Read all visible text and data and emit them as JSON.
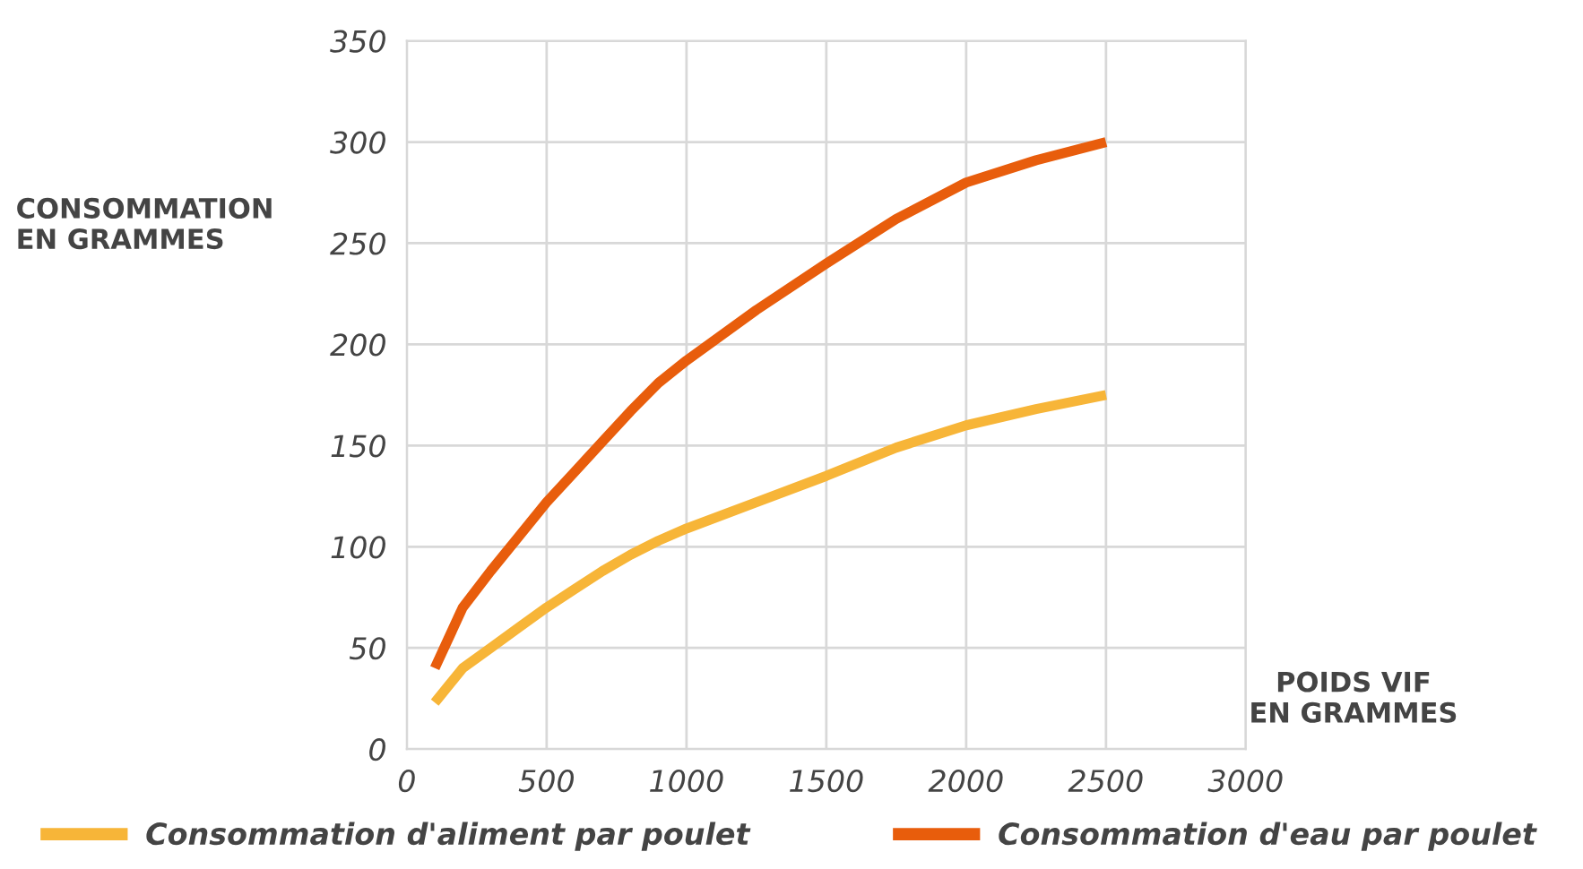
{
  "chart_data": {
    "type": "line",
    "xlabel": "POIDS VIF\nEN GRAMMES",
    "ylabel": "CONSOMMATION\nEN GRAMMES",
    "x": [
      100,
      200,
      300,
      400,
      500,
      600,
      700,
      800,
      900,
      1000,
      1250,
      1500,
      1750,
      2000,
      2250,
      2500
    ],
    "series": [
      {
        "name": "Consommation d'aliment par poulet",
        "color": "#f7b538",
        "values": [
          23,
          40,
          50,
          60,
          70,
          79,
          88,
          96,
          103,
          109,
          122,
          135,
          149,
          160,
          168,
          175
        ]
      },
      {
        "name": "Consommation d'eau par poulet",
        "color": "#e85d0c",
        "values": [
          40,
          70,
          88,
          105,
          122,
          137,
          152,
          167,
          181,
          192,
          217,
          240,
          262,
          280,
          291,
          300
        ]
      }
    ],
    "xlim": [
      0,
      3000
    ],
    "xticks": [
      0,
      500,
      1000,
      1500,
      2000,
      2500,
      3000
    ],
    "ylim": [
      0,
      350
    ],
    "yticks": [
      0,
      50,
      100,
      150,
      200,
      250,
      300,
      350
    ],
    "grid": true,
    "legend": "bottom",
    "marker": "none",
    "line_style": "solid"
  }
}
